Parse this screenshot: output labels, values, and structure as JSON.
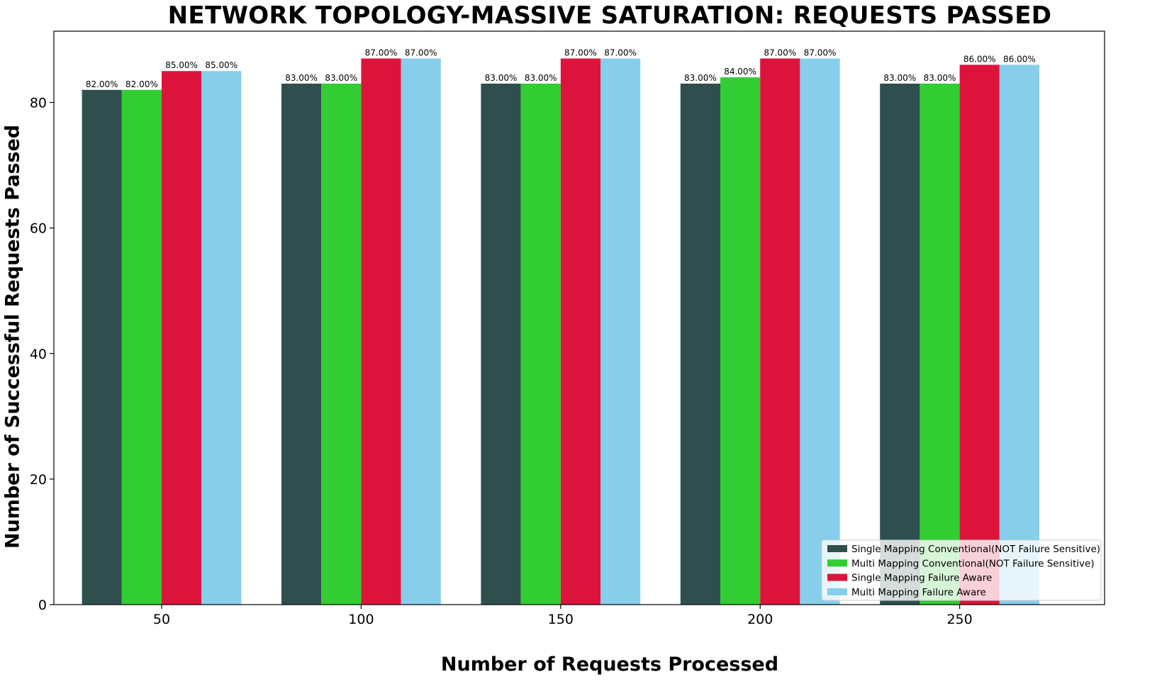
{
  "chart_data": {
    "type": "bar",
    "title": "NETWORK TOPOLOGY-MASSIVE SATURATION: REQUESTS PASSED",
    "xlabel": "Number of Requests Processed",
    "ylabel": "Number of Successful Requests Passed",
    "categories": [
      "50",
      "100",
      "150",
      "200",
      "250"
    ],
    "ylim": [
      0,
      91.35
    ],
    "yticks": [
      0,
      20,
      40,
      60,
      80
    ],
    "grid": false,
    "legend_position": "lower right",
    "series": [
      {
        "name": "Single Mapping Conventional(NOT Failure Sensitive)",
        "color": "#2F4F4F",
        "values": [
          82,
          83,
          83,
          83,
          83
        ],
        "labels": [
          "82.00%",
          "83.00%",
          "83.00%",
          "83.00%",
          "83.00%"
        ]
      },
      {
        "name": "Multi Mapping Conventional(NOT Failure Sensitive)",
        "color": "#32CD32",
        "values": [
          82,
          83,
          83,
          84,
          83
        ],
        "labels": [
          "82.00%",
          "83.00%",
          "83.00%",
          "84.00%",
          "83.00%"
        ]
      },
      {
        "name": "Single Mapping Failure Aware",
        "color": "#DC143C",
        "values": [
          85,
          87,
          87,
          87,
          86
        ],
        "labels": [
          "85.00%",
          "87.00%",
          "87.00%",
          "87.00%",
          "86.00%"
        ]
      },
      {
        "name": "Multi Mapping Failure Aware",
        "color": "#87CEEB",
        "values": [
          85,
          87,
          87,
          87,
          86
        ],
        "labels": [
          "85.00%",
          "87.00%",
          "87.00%",
          "87.00%",
          "86.00%"
        ]
      }
    ]
  }
}
